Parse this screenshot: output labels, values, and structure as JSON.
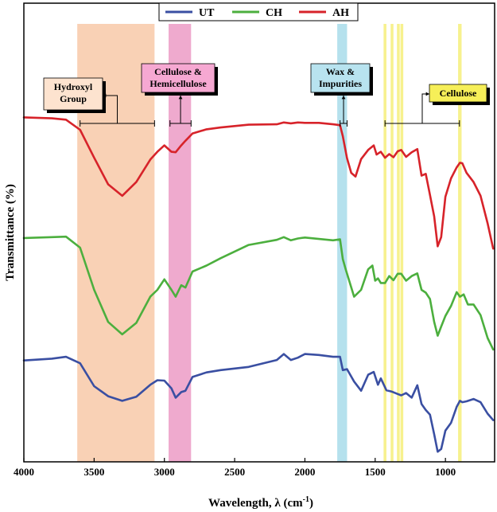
{
  "chart_data": {
    "type": "line",
    "xlabel": "Wavelength, λ  (cm⁻¹)",
    "xlabel_main": "Wavelength, λ  (cm",
    "xlabel_sup": "-1",
    "xlabel_close": ")",
    "ylabel": "Transmittance (%)",
    "xlim": [
      4000,
      650
    ],
    "ylim": [
      0,
      1
    ],
    "x_reversed": true,
    "y_ticks_shown": false,
    "x_ticks": [
      4000,
      3500,
      3000,
      2500,
      2000,
      1500,
      1000
    ],
    "grid": false,
    "legend_position": "top-center",
    "series": [
      {
        "name": "UT",
        "color": "#3a4fa2",
        "points": [
          [
            4000,
            0.221
          ],
          [
            3800,
            0.225
          ],
          [
            3700,
            0.229
          ],
          [
            3600,
            0.215
          ],
          [
            3500,
            0.165
          ],
          [
            3400,
            0.143
          ],
          [
            3300,
            0.133
          ],
          [
            3200,
            0.142
          ],
          [
            3100,
            0.168
          ],
          [
            3050,
            0.178
          ],
          [
            3000,
            0.177
          ],
          [
            2950,
            0.16
          ],
          [
            2920,
            0.14
          ],
          [
            2880,
            0.152
          ],
          [
            2850,
            0.155
          ],
          [
            2800,
            0.185
          ],
          [
            2700,
            0.195
          ],
          [
            2600,
            0.2
          ],
          [
            2400,
            0.207
          ],
          [
            2200,
            0.222
          ],
          [
            2150,
            0.235
          ],
          [
            2100,
            0.222
          ],
          [
            2050,
            0.227
          ],
          [
            2000,
            0.235
          ],
          [
            1900,
            0.233
          ],
          [
            1800,
            0.229
          ],
          [
            1750,
            0.229
          ],
          [
            1730,
            0.2
          ],
          [
            1700,
            0.202
          ],
          [
            1650,
            0.175
          ],
          [
            1600,
            0.155
          ],
          [
            1550,
            0.19
          ],
          [
            1510,
            0.196
          ],
          [
            1480,
            0.168
          ],
          [
            1460,
            0.182
          ],
          [
            1420,
            0.156
          ],
          [
            1380,
            0.153
          ],
          [
            1340,
            0.148
          ],
          [
            1315,
            0.145
          ],
          [
            1280,
            0.15
          ],
          [
            1240,
            0.14
          ],
          [
            1200,
            0.167
          ],
          [
            1170,
            0.126
          ],
          [
            1140,
            0.113
          ],
          [
            1110,
            0.103
          ],
          [
            1080,
            0.06
          ],
          [
            1055,
            0.022
          ],
          [
            1030,
            0.028
          ],
          [
            1000,
            0.068
          ],
          [
            960,
            0.085
          ],
          [
            920,
            0.12
          ],
          [
            897,
            0.133
          ],
          [
            880,
            0.13
          ],
          [
            850,
            0.132
          ],
          [
            800,
            0.137
          ],
          [
            750,
            0.13
          ],
          [
            700,
            0.105
          ],
          [
            660,
            0.091
          ]
        ]
      },
      {
        "name": "CH",
        "color": "#4caf3e",
        "points": [
          [
            4000,
            0.488
          ],
          [
            3800,
            0.49
          ],
          [
            3700,
            0.491
          ],
          [
            3600,
            0.467
          ],
          [
            3500,
            0.375
          ],
          [
            3400,
            0.305
          ],
          [
            3300,
            0.278
          ],
          [
            3200,
            0.303
          ],
          [
            3100,
            0.36
          ],
          [
            3050,
            0.375
          ],
          [
            3000,
            0.398
          ],
          [
            2950,
            0.375
          ],
          [
            2920,
            0.36
          ],
          [
            2880,
            0.385
          ],
          [
            2850,
            0.38
          ],
          [
            2800,
            0.415
          ],
          [
            2700,
            0.428
          ],
          [
            2600,
            0.444
          ],
          [
            2400,
            0.473
          ],
          [
            2200,
            0.484
          ],
          [
            2150,
            0.49
          ],
          [
            2100,
            0.483
          ],
          [
            2050,
            0.487
          ],
          [
            2000,
            0.489
          ],
          [
            1900,
            0.486
          ],
          [
            1800,
            0.483
          ],
          [
            1750,
            0.485
          ],
          [
            1730,
            0.442
          ],
          [
            1710,
            0.42
          ],
          [
            1680,
            0.39
          ],
          [
            1650,
            0.36
          ],
          [
            1600,
            0.375
          ],
          [
            1550,
            0.42
          ],
          [
            1520,
            0.428
          ],
          [
            1500,
            0.395
          ],
          [
            1480,
            0.4
          ],
          [
            1460,
            0.39
          ],
          [
            1430,
            0.39
          ],
          [
            1400,
            0.405
          ],
          [
            1370,
            0.396
          ],
          [
            1340,
            0.41
          ],
          [
            1315,
            0.41
          ],
          [
            1280,
            0.395
          ],
          [
            1240,
            0.405
          ],
          [
            1200,
            0.411
          ],
          [
            1170,
            0.375
          ],
          [
            1140,
            0.369
          ],
          [
            1110,
            0.355
          ],
          [
            1080,
            0.305
          ],
          [
            1055,
            0.275
          ],
          [
            1030,
            0.295
          ],
          [
            1000,
            0.318
          ],
          [
            960,
            0.34
          ],
          [
            920,
            0.37
          ],
          [
            897,
            0.36
          ],
          [
            870,
            0.365
          ],
          [
            840,
            0.343
          ],
          [
            800,
            0.343
          ],
          [
            750,
            0.32
          ],
          [
            700,
            0.27
          ],
          [
            660,
            0.245
          ]
        ]
      },
      {
        "name": "AH",
        "color": "#d7232a",
        "points": [
          [
            4000,
            0.751
          ],
          [
            3800,
            0.749
          ],
          [
            3700,
            0.746
          ],
          [
            3600,
            0.724
          ],
          [
            3500,
            0.663
          ],
          [
            3400,
            0.605
          ],
          [
            3300,
            0.58
          ],
          [
            3200,
            0.61
          ],
          [
            3100,
            0.659
          ],
          [
            3050,
            0.676
          ],
          [
            3000,
            0.69
          ],
          [
            2950,
            0.676
          ],
          [
            2920,
            0.675
          ],
          [
            2880,
            0.69
          ],
          [
            2850,
            0.7
          ],
          [
            2800,
            0.716
          ],
          [
            2700,
            0.725
          ],
          [
            2600,
            0.729
          ],
          [
            2400,
            0.735
          ],
          [
            2200,
            0.736
          ],
          [
            2150,
            0.74
          ],
          [
            2100,
            0.738
          ],
          [
            2050,
            0.74
          ],
          [
            2000,
            0.739
          ],
          [
            1900,
            0.739
          ],
          [
            1800,
            0.736
          ],
          [
            1750,
            0.734
          ],
          [
            1730,
            0.71
          ],
          [
            1700,
            0.662
          ],
          [
            1670,
            0.63
          ],
          [
            1640,
            0.622
          ],
          [
            1600,
            0.66
          ],
          [
            1550,
            0.68
          ],
          [
            1510,
            0.69
          ],
          [
            1490,
            0.67
          ],
          [
            1460,
            0.676
          ],
          [
            1430,
            0.663
          ],
          [
            1400,
            0.671
          ],
          [
            1370,
            0.664
          ],
          [
            1340,
            0.677
          ],
          [
            1315,
            0.68
          ],
          [
            1280,
            0.665
          ],
          [
            1240,
            0.675
          ],
          [
            1200,
            0.682
          ],
          [
            1170,
            0.624
          ],
          [
            1140,
            0.628
          ],
          [
            1110,
            0.582
          ],
          [
            1080,
            0.535
          ],
          [
            1055,
            0.47
          ],
          [
            1030,
            0.49
          ],
          [
            1000,
            0.578
          ],
          [
            960,
            0.618
          ],
          [
            920,
            0.642
          ],
          [
            897,
            0.652
          ],
          [
            880,
            0.651
          ],
          [
            850,
            0.63
          ],
          [
            800,
            0.61
          ],
          [
            750,
            0.58
          ],
          [
            700,
            0.52
          ],
          [
            660,
            0.465
          ]
        ]
      }
    ],
    "bands": [
      {
        "from": 3620,
        "to": 3070,
        "color": "#f8c9a8"
      },
      {
        "from": 2970,
        "to": 2810,
        "color": "#ec9bc6"
      },
      {
        "from": 1770,
        "to": 1700,
        "color": "#a8dcea"
      },
      {
        "from": 1440,
        "to": 1420,
        "color": "#f6ef7a"
      },
      {
        "from": 1390,
        "to": 1370,
        "color": "#f6ef7a"
      },
      {
        "from": 1345,
        "to": 1325,
        "color": "#f6ef7a"
      },
      {
        "from": 1320,
        "to": 1300,
        "color": "#f6ef7a"
      },
      {
        "from": 910,
        "to": 885,
        "color": "#f6ef7a"
      }
    ],
    "annotations": [
      {
        "lines": [
          "Hydroxyl",
          "Group"
        ],
        "box_color": "#fde3cf",
        "bracket": [
          3600,
          3070
        ]
      },
      {
        "lines": [
          "Cellulose &",
          "Hemicellulose"
        ],
        "box_color": "#f6a8d2",
        "bracket": [
          2960,
          2810
        ]
      },
      {
        "lines": [
          "Wax &",
          "Impurities"
        ],
        "box_color": "#b8e3ef",
        "bracket": [
          1750,
          1700
        ]
      },
      {
        "lines": [
          "Cellulose"
        ],
        "box_color": "#f6ef58",
        "bracket": [
          1430,
          900
        ]
      }
    ]
  }
}
